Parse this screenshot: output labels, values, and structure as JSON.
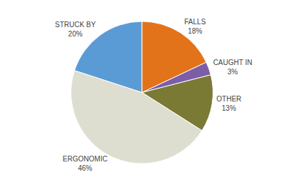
{
  "chart_data": {
    "type": "pie",
    "categories": [
      "STRUCK BY",
      "FALLS",
      "CAUGHT IN",
      "OTHER",
      "ERGONOMIC"
    ],
    "values": [
      20,
      18,
      3,
      13,
      46
    ],
    "value_labels": [
      "20%",
      "18%",
      "3%",
      "13%",
      "46%"
    ],
    "colors": [
      "#5b9bd5",
      "#e2731a",
      "#7b5ea7",
      "#7a7a35",
      "#deded0"
    ],
    "data_labels": true
  }
}
